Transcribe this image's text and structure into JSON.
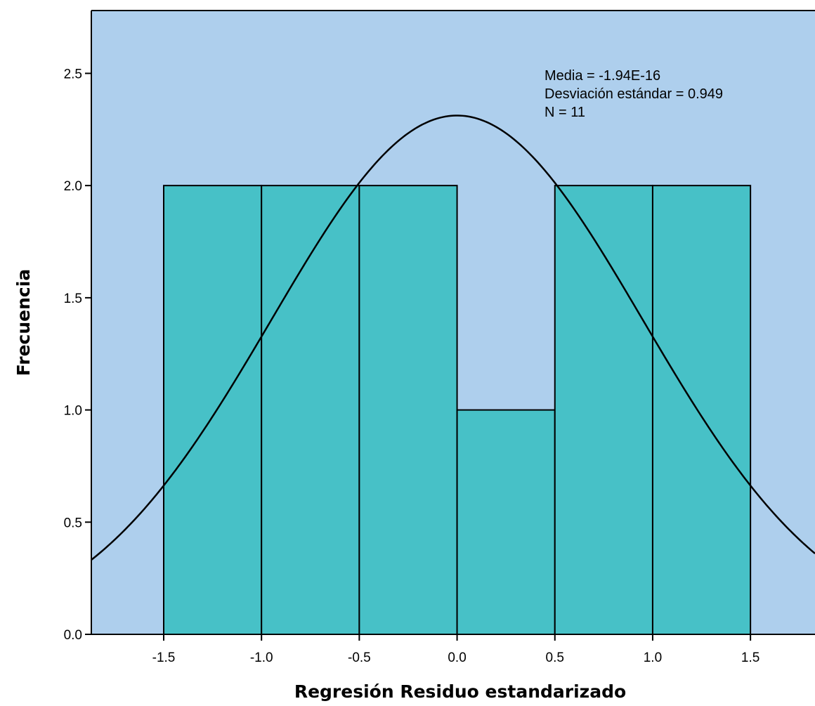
{
  "chart_data": {
    "type": "bar",
    "subtype": "histogram",
    "title": "",
    "xlabel": "Regresión Residuo estandarizado",
    "ylabel": "Frecuencia",
    "xlim": [
      -1.87,
      1.83
    ],
    "ylim": [
      0,
      2.78
    ],
    "x_ticks": [
      -1.5,
      -1.0,
      -0.5,
      0.0,
      0.5,
      1.0,
      1.5
    ],
    "x_tick_labels": [
      "-1.5",
      "-1.0",
      "-0.5",
      "0.0",
      "0.5",
      "1.0",
      "1.5"
    ],
    "y_ticks": [
      0.0,
      0.5,
      1.0,
      1.5,
      2.0,
      2.5
    ],
    "y_tick_labels": [
      "0.0",
      "0.5",
      "1.0",
      "1.5",
      "2.0",
      "2.5"
    ],
    "bins": [
      {
        "x0": -1.5,
        "x1": -1.0,
        "count": 2
      },
      {
        "x0": -1.0,
        "x1": -0.5,
        "count": 2
      },
      {
        "x0": -0.5,
        "x1": 0.0,
        "count": 2
      },
      {
        "x0": 0.0,
        "x1": 0.5,
        "count": 1
      },
      {
        "x0": 0.5,
        "x1": 1.0,
        "count": 2
      },
      {
        "x0": 1.0,
        "x1": 1.5,
        "count": 2
      }
    ],
    "normal_curve": {
      "mean": -1.94e-16,
      "sd": 0.949,
      "n": 11,
      "bin_width": 0.5
    },
    "stats_lines": [
      "Media = -1.94E-16",
      "Desviación estándar = 0.949",
      "N = 11"
    ],
    "colors": {
      "plot_background": "#aecfed",
      "bar_fill": "#47c1c7",
      "bar_stroke": "#000000",
      "curve": "#000000"
    },
    "grid": false,
    "legend": "none"
  }
}
